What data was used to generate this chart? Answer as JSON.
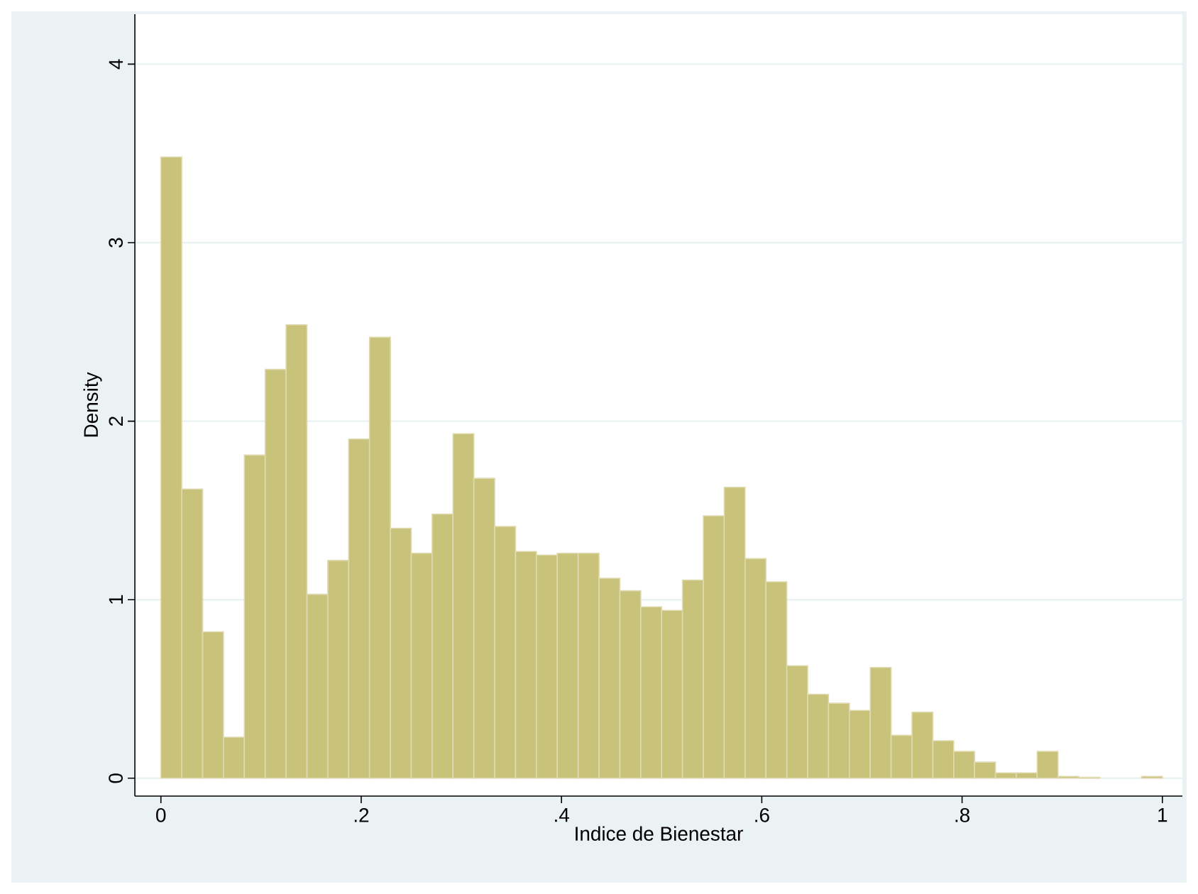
{
  "chart_data": {
    "type": "histogram",
    "xlabel": "Indice de Bienestar",
    "ylabel": "Density",
    "color": "#c9c27a",
    "bins": [
      0,
      0.0208333,
      0.0416667,
      0.0625,
      0.0833333,
      0.1041667,
      0.125,
      0.1458333,
      0.1666667,
      0.1875,
      0.2083333,
      0.2291667,
      0.25,
      0.2708333,
      0.2916667,
      0.3125,
      0.3333333,
      0.3541667,
      0.375,
      0.3958333,
      0.4166667,
      0.4375,
      0.4583333,
      0.4791667,
      0.5,
      0.5208333,
      0.5416667,
      0.5625,
      0.5833333,
      0.6041667,
      0.625,
      0.6458333,
      0.6666667,
      0.6875,
      0.7083333,
      0.7291667,
      0.75,
      0.7708333,
      0.7916667,
      0.8125,
      0.8333333,
      0.8541667,
      0.875,
      0.8958333,
      0.9166667,
      0.9375,
      0.9583333,
      0.9791667,
      1
    ],
    "values": [
      3.48,
      1.62,
      0.82,
      0.23,
      1.81,
      2.29,
      2.54,
      1.03,
      1.22,
      1.9,
      2.47,
      1.4,
      1.26,
      1.48,
      1.93,
      1.68,
      1.41,
      1.27,
      1.25,
      1.26,
      1.26,
      1.12,
      1.05,
      0.96,
      0.94,
      1.11,
      1.47,
      1.63,
      1.23,
      1.1,
      0.63,
      0.47,
      0.42,
      0.38,
      0.62,
      0.24,
      0.37,
      0.21,
      0.15,
      0.09,
      0.03,
      0.03,
      0.15,
      0.01,
      0.005,
      null,
      null,
      0.01
    ],
    "xlim": [
      -0.026,
      1.02
    ],
    "ylim": [
      -0.1,
      4.28
    ],
    "xticks": [
      0,
      {
        "value": 0.2,
        "label": ".2"
      },
      {
        "value": 0.4,
        "label": ".4"
      },
      {
        "value": 0.6,
        "label": ".6"
      },
      {
        "value": 0.8,
        "label": ".8"
      },
      1
    ],
    "yticks": [
      0,
      1,
      2,
      3,
      4
    ],
    "grid": "y"
  }
}
